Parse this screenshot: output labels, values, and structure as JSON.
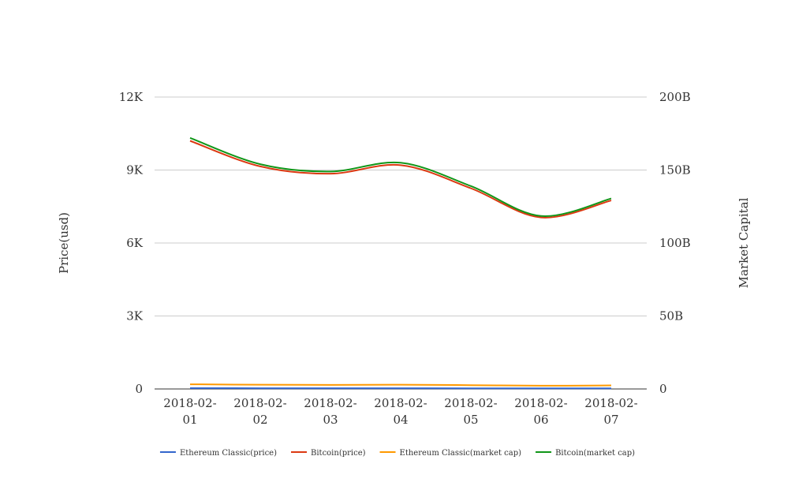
{
  "chart_data": {
    "type": "line",
    "categories": [
      "2018-02-01",
      "2018-02-02",
      "2018-02-03",
      "2018-02-04",
      "2018-02-05",
      "2018-02-06",
      "2018-02-07"
    ],
    "category_labels": [
      [
        "2018-02-",
        "01"
      ],
      [
        "2018-02-",
        "02"
      ],
      [
        "2018-02-",
        "03"
      ],
      [
        "2018-02-",
        "04"
      ],
      [
        "2018-02-",
        "05"
      ],
      [
        "2018-02-",
        "06"
      ],
      [
        "2018-02-",
        "07"
      ]
    ],
    "y_left": {
      "label": "Price(usd)",
      "ylim": [
        0,
        12000
      ],
      "ticks": [
        0,
        3000,
        6000,
        9000,
        12000
      ],
      "tick_labels": [
        "0",
        "3K",
        "6K",
        "9K",
        "12K"
      ]
    },
    "y_right": {
      "label": "Market Capital",
      "ylim": [
        0,
        200000000000
      ],
      "ticks": [
        0,
        50000000000,
        100000000000,
        150000000000,
        200000000000
      ],
      "tick_labels": [
        "0",
        "50B",
        "100B",
        "150B",
        "200B"
      ]
    },
    "grid": true,
    "legend_position": "bottom",
    "series": [
      {
        "name": "Ethereum Classic(price)",
        "axis": "left",
        "color": "#3366cc",
        "values": [
          32,
          30,
          29,
          29,
          26,
          24,
          25
        ]
      },
      {
        "name": "Bitcoin(price)",
        "axis": "left",
        "color": "#dc3912",
        "values": [
          10200,
          9150,
          8850,
          9200,
          8250,
          7050,
          7750
        ]
      },
      {
        "name": "Ethereum Classic(market cap)",
        "axis": "right",
        "color": "#ff9900",
        "values": [
          3200000000,
          2900000000,
          2800000000,
          2900000000,
          2600000000,
          2200000000,
          2400000000
        ]
      },
      {
        "name": "Bitcoin(market cap)",
        "axis": "right",
        "color": "#109618",
        "values": [
          172000000000,
          154000000000,
          149000000000,
          155000000000,
          139000000000,
          118500000000,
          130500000000
        ]
      }
    ]
  }
}
